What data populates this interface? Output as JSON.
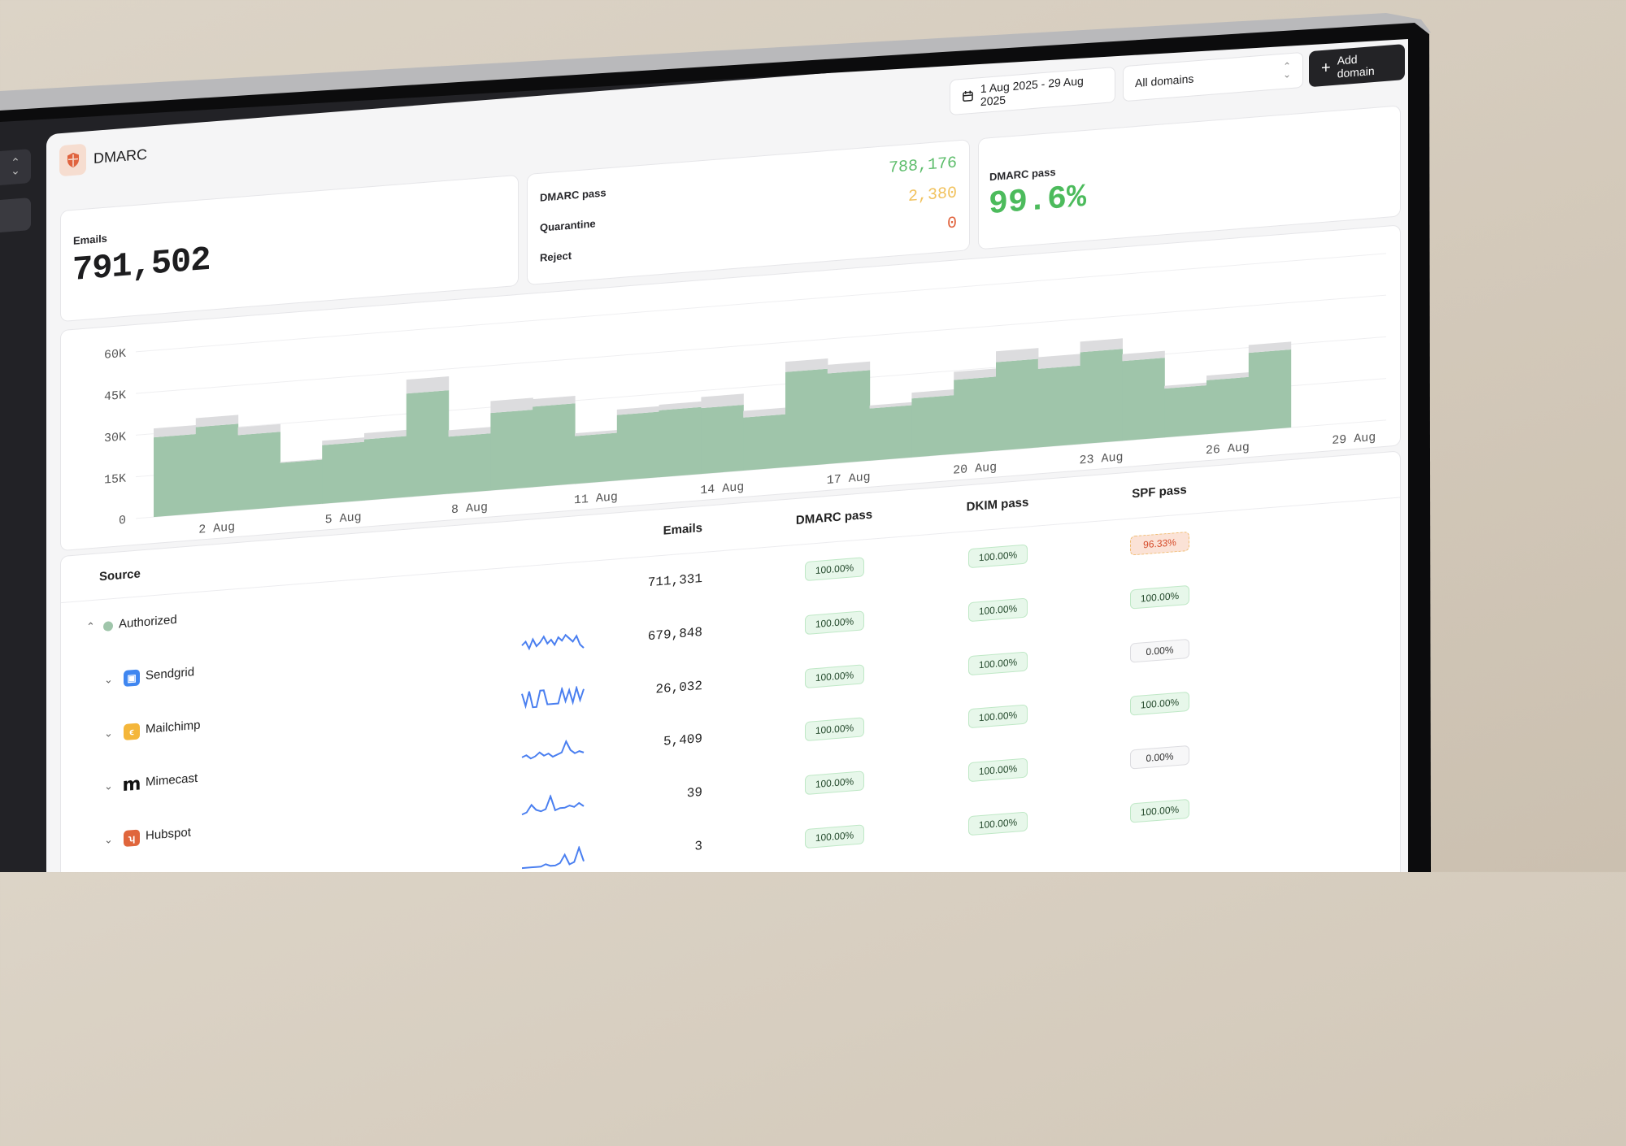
{
  "header": {
    "title": "DMARC",
    "date_range": "1 Aug 2025 - 29 Aug 2025",
    "domain_select": "All domains",
    "add_domain": "Add domain"
  },
  "stats": {
    "emails_label": "Emails",
    "emails_value": "791,502",
    "breakdown": [
      {
        "label": "DMARC pass",
        "value": "788,176",
        "color": "#5dbd6b"
      },
      {
        "label": "Quarantine",
        "value": "2,380",
        "color": "#f1c25e"
      },
      {
        "label": "Reject",
        "value": "0",
        "color": "#e0623c"
      }
    ],
    "pass_rate_label": "DMARC pass",
    "pass_rate_value": "99.6%",
    "pass_rate_color": "#4cbb5c"
  },
  "chart_data": {
    "type": "bar",
    "stacked": true,
    "categories": [
      "1 Aug",
      "2 Aug",
      "3 Aug",
      "4 Aug",
      "5 Aug",
      "6 Aug",
      "7 Aug",
      "8 Aug",
      "9 Aug",
      "10 Aug",
      "11 Aug",
      "12 Aug",
      "13 Aug",
      "14 Aug",
      "15 Aug",
      "16 Aug",
      "17 Aug",
      "18 Aug",
      "19 Aug",
      "20 Aug",
      "21 Aug",
      "22 Aug",
      "23 Aug",
      "24 Aug",
      "25 Aug",
      "26 Aug",
      "27 Aug",
      "28 Aug",
      "29 Aug"
    ],
    "x_tick_labels": [
      "2 Aug",
      "5 Aug",
      "8 Aug",
      "11 Aug",
      "14 Aug",
      "17 Aug",
      "20 Aug",
      "23 Aug",
      "26 Aug",
      "29 Aug"
    ],
    "y_tick_labels": [
      "0",
      "15K",
      "30K",
      "45K",
      "60K"
    ],
    "ylim": [
      0,
      60000
    ],
    "grid": true,
    "series": [
      {
        "color": "#9fc5aa",
        "values": [
          28700,
          31200,
          27100,
          15900,
          21100,
          22000,
          37300,
          20600,
          27900,
          29000,
          17200,
          23600,
          24100,
          23700,
          19100,
          34300,
          32600,
          18800,
          21200,
          26700,
          31900,
          28300,
          33100,
          28700,
          17600,
          19400,
          28100,
          null,
          null
        ]
      },
      {
        "color": "#dcdcde",
        "values": [
          3200,
          3200,
          2800,
          300,
          1600,
          2200,
          5000,
          2300,
          4300,
          2700,
          1000,
          2000,
          2000,
          4000,
          2400,
          3700,
          3100,
          1100,
          2100,
          2900,
          3900,
          4200,
          3800,
          2500,
          1000,
          1700,
          2800,
          null,
          null
        ]
      }
    ],
    "title": "",
    "xlabel": "",
    "ylabel": ""
  },
  "table": {
    "columns": {
      "source": "Source",
      "emails": "Emails",
      "dmarc": "DMARC pass",
      "dkim": "DKIM pass",
      "spf": "SPF pass"
    },
    "rows": [
      {
        "name": "Authorized",
        "level": 0,
        "expanded": true,
        "icon": "status-dot-icon",
        "emails": "711,331",
        "dmarc": "100.00%",
        "dmarc_status": "pass",
        "dkim": "100.00%",
        "dkim_status": "pass",
        "spf": "96.33%",
        "spf_status": "warning",
        "trend": null
      },
      {
        "name": "Sendgrid",
        "level": 1,
        "expanded": false,
        "icon": "sendgrid-logo-icon",
        "emails": "679,848",
        "dmarc": "100.00%",
        "dmarc_status": "pass",
        "dkim": "100.00%",
        "dkim_status": "pass",
        "spf": "100.00%",
        "spf_status": "pass",
        "trend": [
          6,
          8,
          4,
          9,
          5,
          7,
          10,
          6,
          8,
          5,
          9,
          7,
          10,
          8,
          6,
          9,
          4,
          2
        ]
      },
      {
        "name": "Mailchimp",
        "level": 1,
        "expanded": false,
        "icon": "mailchimp-logo-icon",
        "emails": "26,032",
        "dmarc": "100.00%",
        "dmarc_status": "pass",
        "dkim": "100.00%",
        "dkim_status": "pass",
        "spf": "0.00%",
        "spf_status": "neutral",
        "trend": [
          9,
          2,
          10,
          1,
          1,
          10,
          10,
          2,
          2,
          2,
          2,
          10,
          3,
          9,
          2,
          10,
          3,
          9
        ]
      },
      {
        "name": "Mimecast",
        "level": 1,
        "expanded": false,
        "icon": "mimecast-logo-icon",
        "emails": "5,409",
        "dmarc": "100.00%",
        "dmarc_status": "pass",
        "dkim": "100.00%",
        "dkim_status": "pass",
        "spf": "100.00%",
        "spf_status": "pass",
        "trend": [
          3,
          4,
          2,
          3,
          5,
          3,
          4,
          2,
          3,
          4,
          10,
          5,
          3,
          4,
          3
        ]
      },
      {
        "name": "Hubspot",
        "level": 1,
        "expanded": false,
        "icon": "hubspot-logo-icon",
        "emails": "39",
        "dmarc": "100.00%",
        "dmarc_status": "pass",
        "dkim": "100.00%",
        "dkim_status": "pass",
        "spf": "0.00%",
        "spf_status": "neutral",
        "trend": [
          1,
          2,
          6,
          3,
          2,
          3,
          10,
          2,
          3,
          3,
          4,
          3,
          5,
          3
        ]
      },
      {
        "name": "",
        "level": 1,
        "expanded": false,
        "icon": null,
        "emails": "3",
        "dmarc": "100.00%",
        "dmarc_status": "pass",
        "dkim": "100.00%",
        "dkim_status": "pass",
        "spf": "100.00%",
        "spf_status": "pass",
        "trend": [
          1,
          1,
          1,
          1,
          1,
          2,
          1,
          1,
          2,
          6,
          1,
          2,
          9,
          2
        ]
      }
    ]
  }
}
